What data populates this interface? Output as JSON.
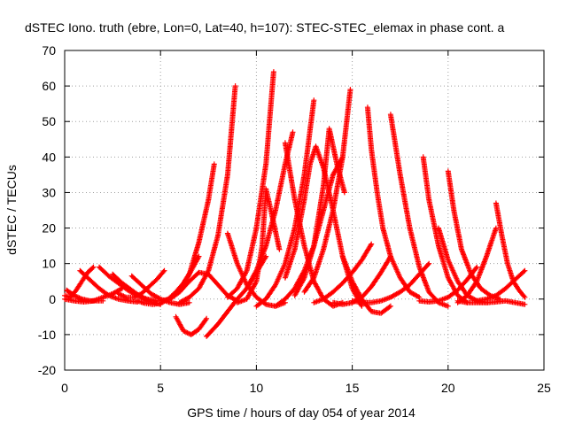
{
  "chart_data": {
    "type": "scatter",
    "title": "dSTEC Iono. truth (ebre, Lon=0, Lat=40, h=107): STEC-STEC_elemax in phase cont. a",
    "xlabel": "GPS time / hours of day 054 of year 2014",
    "ylabel": "dSTEC  / TECUs",
    "xlim": [
      0,
      25
    ],
    "ylim": [
      -20,
      70
    ],
    "x_ticks": [
      0,
      5,
      10,
      15,
      20,
      25
    ],
    "y_ticks": [
      -20,
      -10,
      0,
      10,
      20,
      30,
      40,
      50,
      60,
      70
    ],
    "grid": true,
    "marker": "+",
    "series_color": "#ff0000",
    "series": [
      {
        "x": [
          0.0,
          0.3,
          0.6,
          0.9,
          1.2,
          1.5
        ],
        "y": [
          1.0,
          0.5,
          2.5,
          5.0,
          7.5,
          9.0
        ]
      },
      {
        "x": [
          0.1,
          0.5,
          0.9,
          1.3,
          1.7,
          2.0
        ],
        "y": [
          2.5,
          1.0,
          0.0,
          -0.5,
          -0.5,
          -0.5
        ]
      },
      {
        "x": [
          0.0,
          0.5,
          1.0,
          1.5,
          2.0,
          2.5,
          3.0
        ],
        "y": [
          0.0,
          -0.5,
          -0.8,
          -0.5,
          0.5,
          1.5,
          3.0
        ]
      },
      {
        "x": [
          0.8,
          1.3,
          1.8,
          2.3,
          2.8,
          3.3,
          3.8
        ],
        "y": [
          8.0,
          5.5,
          3.0,
          1.0,
          0.0,
          -0.5,
          -0.8
        ]
      },
      {
        "x": [
          1.8,
          2.3,
          2.8,
          3.3,
          3.8,
          4.3,
          4.8
        ],
        "y": [
          9.0,
          6.5,
          4.5,
          2.5,
          1.0,
          0.0,
          -0.5
        ]
      },
      {
        "x": [
          2.5,
          3.0,
          3.5,
          4.0,
          4.5,
          5.0
        ],
        "y": [
          7.0,
          4.5,
          2.5,
          0.5,
          -0.8,
          -1.5
        ]
      },
      {
        "x": [
          3.5,
          4.0,
          4.5,
          5.0,
          5.5,
          6.0,
          6.5
        ],
        "y": [
          6.5,
          4.0,
          1.5,
          0.0,
          -1.0,
          -1.5,
          -1.0
        ]
      },
      {
        "x": [
          3.8,
          4.2,
          4.6,
          5.0,
          5.4,
          5.8,
          6.2,
          6.6,
          7.0
        ],
        "y": [
          -0.5,
          -1.2,
          -1.5,
          -1.2,
          0.0,
          2.0,
          4.5,
          8.0,
          12.0
        ]
      },
      {
        "x": [
          2.8,
          3.2,
          3.6,
          4.0,
          4.4,
          4.8,
          5.2
        ],
        "y": [
          1.5,
          0.5,
          0.5,
          1.5,
          3.5,
          5.5,
          8.0
        ]
      },
      {
        "x": [
          5.0,
          5.5,
          6.0,
          6.5,
          7.0,
          7.5,
          8.0,
          8.5,
          9.0
        ],
        "y": [
          -0.5,
          0.0,
          2.0,
          5.0,
          7.5,
          7.0,
          4.0,
          1.0,
          -0.5
        ]
      },
      {
        "x": [
          5.5,
          6.0,
          6.5,
          7.0,
          7.5,
          7.8
        ],
        "y": [
          0.0,
          2.5,
          7.0,
          16.0,
          28.0,
          38.0
        ]
      },
      {
        "x": [
          5.8,
          6.2,
          6.6,
          7.0,
          7.4
        ],
        "y": [
          -5.0,
          -9.0,
          -10.0,
          -8.5,
          -5.5
        ]
      },
      {
        "x": [
          6.0,
          6.5,
          7.0,
          7.5,
          8.0,
          8.5,
          8.9
        ],
        "y": [
          -1.0,
          0.5,
          3.0,
          8.0,
          18.0,
          35.0,
          60.0
        ]
      },
      {
        "x": [
          7.4,
          8.0,
          8.5,
          9.0,
          9.5,
          10.0,
          10.5
        ],
        "y": [
          -10.5,
          -7.0,
          -3.5,
          0.0,
          3.0,
          7.5,
          12.0
        ]
      },
      {
        "x": [
          8.5,
          9.0,
          9.5,
          10.0,
          10.5,
          11.0,
          11.5
        ],
        "y": [
          18.5,
          10.0,
          4.0,
          0.5,
          -1.5,
          -2.0,
          -1.0
        ]
      },
      {
        "x": [
          8.5,
          9.0,
          9.5,
          10.0,
          10.5,
          10.9
        ],
        "y": [
          0.5,
          3.0,
          8.0,
          20.0,
          38.0,
          64.0
        ]
      },
      {
        "x": [
          9.0,
          9.5,
          10.0,
          10.3,
          10.5,
          10.8,
          11.2
        ],
        "y": [
          -1.0,
          0.0,
          5.0,
          15.0,
          31.0,
          24.0,
          14.0
        ]
      },
      {
        "x": [
          9.5,
          10.0,
          10.5,
          11.0,
          11.5,
          11.9
        ],
        "y": [
          3.0,
          8.0,
          15.0,
          25.0,
          38.0,
          47.0
        ]
      },
      {
        "x": [
          10.0,
          10.5,
          11.0,
          11.5,
          12.0,
          12.5,
          13.0
        ],
        "y": [
          -2.0,
          0.0,
          4.0,
          10.0,
          20.0,
          35.0,
          56.0
        ]
      },
      {
        "x": [
          11.5,
          12.0,
          12.5,
          13.0,
          13.5,
          14.0,
          14.5
        ],
        "y": [
          44.0,
          28.0,
          15.0,
          5.0,
          0.0,
          -2.0,
          -1.0
        ]
      },
      {
        "x": [
          11.5,
          12.0,
          12.5,
          12.8,
          13.1,
          13.5,
          14.0,
          14.5,
          15.0,
          15.5
        ],
        "y": [
          6.0,
          14.0,
          28.0,
          38.0,
          43.0,
          37.0,
          25.0,
          12.0,
          3.0,
          -2.0
        ]
      },
      {
        "x": [
          11.0,
          11.5,
          12.0,
          12.5,
          13.0,
          13.5,
          14.0,
          14.5
        ],
        "y": [
          -2.0,
          0.0,
          3.0,
          8.0,
          15.0,
          25.0,
          35.0,
          40.0
        ]
      },
      {
        "x": [
          12.0,
          12.5,
          13.0,
          13.5,
          13.8,
          14.2,
          14.6
        ],
        "y": [
          1.0,
          6.0,
          15.0,
          32.0,
          48.0,
          38.0,
          30.0
        ]
      },
      {
        "x": [
          12.5,
          13.0,
          13.5,
          14.0,
          14.5,
          14.9
        ],
        "y": [
          2.0,
          6.0,
          14.0,
          25.0,
          40.0,
          59.0
        ]
      },
      {
        "x": [
          13.0,
          13.5,
          14.0,
          14.5,
          15.0,
          15.5,
          16.0
        ],
        "y": [
          -1.0,
          0.0,
          2.0,
          4.5,
          7.5,
          11.0,
          15.5
        ]
      },
      {
        "x": [
          14.0,
          14.5,
          15.0,
          15.5,
          16.0,
          16.5,
          17.0
        ],
        "y": [
          -1.0,
          -1.5,
          -1.0,
          0.5,
          3.5,
          7.5,
          12.0
        ]
      },
      {
        "x": [
          15.8,
          16.0,
          16.3,
          16.6,
          17.0,
          17.5,
          18.0,
          18.5
        ],
        "y": [
          54.0,
          42.0,
          30.0,
          20.0,
          12.0,
          6.0,
          2.0,
          0.5
        ]
      },
      {
        "x": [
          14.5,
          15.0,
          15.5,
          16.0,
          16.5,
          17.0
        ],
        "y": [
          12.0,
          5.0,
          0.0,
          -3.5,
          -4.0,
          -2.0
        ]
      },
      {
        "x": [
          15.0,
          15.5,
          16.0,
          16.5,
          17.0,
          17.5,
          18.0,
          18.5,
          19.0
        ],
        "y": [
          -0.5,
          -1.0,
          -1.0,
          -0.5,
          0.5,
          2.0,
          4.0,
          7.0,
          10.0
        ]
      },
      {
        "x": [
          17.0,
          17.5,
          18.0,
          18.5,
          19.0,
          19.5,
          20.0
        ],
        "y": [
          52.0,
          35.0,
          20.0,
          9.0,
          2.0,
          -1.0,
          -2.0
        ]
      },
      {
        "x": [
          18.7,
          19.0,
          19.5,
          20.0,
          20.5,
          21.0
        ],
        "y": [
          40.0,
          28.0,
          15.0,
          6.0,
          1.0,
          -1.0
        ]
      },
      {
        "x": [
          18.5,
          19.0,
          19.5,
          20.0,
          20.5,
          21.0,
          21.5
        ],
        "y": [
          -0.5,
          -0.8,
          -0.5,
          0.5,
          2.5,
          5.5,
          9.0
        ]
      },
      {
        "x": [
          19.5,
          20.0,
          20.5,
          21.0,
          21.5,
          22.0
        ],
        "y": [
          20.0,
          11.0,
          5.0,
          1.0,
          -0.5,
          -1.0
        ]
      },
      {
        "x": [
          20.0,
          20.3,
          20.7,
          21.2,
          21.7,
          22.2,
          22.7
        ],
        "y": [
          36.0,
          25.0,
          14.0,
          7.0,
          3.0,
          1.0,
          0.0
        ]
      },
      {
        "x": [
          20.5,
          21.0,
          21.5,
          22.0,
          22.5
        ],
        "y": [
          -1.0,
          1.0,
          5.0,
          12.0,
          20.0
        ]
      },
      {
        "x": [
          20.5,
          21.0,
          21.5,
          22.0,
          22.5,
          23.0,
          23.5,
          24.0
        ],
        "y": [
          -0.5,
          -1.0,
          -1.0,
          -1.0,
          -0.8,
          -0.5,
          -1.0,
          -1.5
        ]
      },
      {
        "x": [
          22.5,
          22.8,
          23.1,
          23.4,
          23.7,
          24.0
        ],
        "y": [
          27.0,
          18.0,
          10.0,
          5.0,
          2.5,
          0.5
        ]
      },
      {
        "x": [
          21.5,
          22.0,
          22.5,
          23.0,
          23.5,
          24.0
        ],
        "y": [
          -0.5,
          0.0,
          1.0,
          3.0,
          5.5,
          8.0
        ]
      }
    ]
  }
}
